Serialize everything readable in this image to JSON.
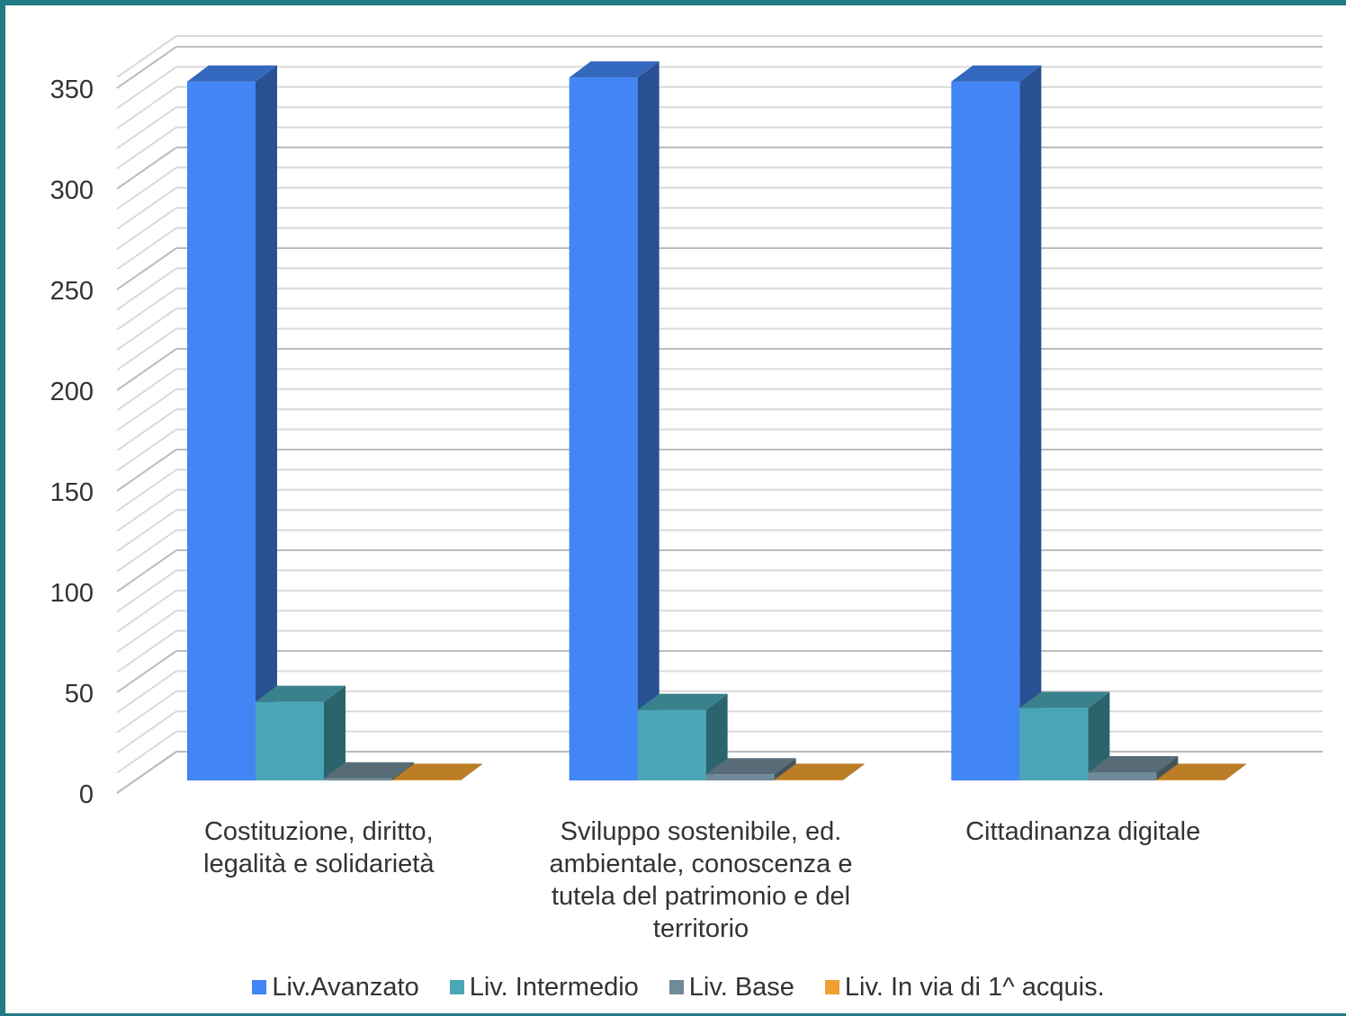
{
  "chart_data": {
    "type": "bar",
    "title": "",
    "xlabel": "",
    "ylabel": "",
    "ylim": [
      0,
      350
    ],
    "yticks": [
      "0",
      "50",
      "100",
      "150",
      "200",
      "250",
      "300",
      "350"
    ],
    "categories": [
      [
        "Costituzione, diritto,",
        "legalità e solidarietà"
      ],
      [
        "Sviluppo sostenibile, ed.",
        "ambientale, conoscenza e",
        "tutela del patrimonio e del",
        "territorio"
      ],
      [
        "Cittadinanza digitale"
      ]
    ],
    "series": [
      {
        "name": "Liv.Avanzato",
        "color": "#4285f4",
        "values": [
          347,
          349,
          347
        ]
      },
      {
        "name": "Liv. Intermedio",
        "color": "#4aa6b6",
        "values": [
          39,
          35,
          36
        ]
      },
      {
        "name": "Liv. Base",
        "color": "#6f8a99",
        "values": [
          1,
          3,
          4
        ]
      },
      {
        "name": "Liv. In via di 1^ acquis.",
        "color": "#f0a030",
        "values": [
          0,
          0,
          0
        ]
      }
    ],
    "grid": true,
    "legend": "bottom",
    "style": "3d-clustered-column"
  }
}
